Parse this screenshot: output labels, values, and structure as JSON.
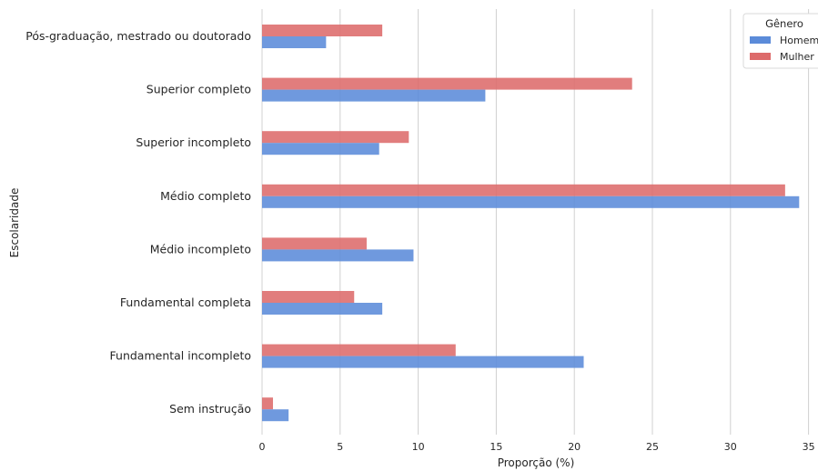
{
  "chart_data": {
    "type": "bar",
    "orientation": "horizontal",
    "title": "",
    "xlabel": "Proporção (%)",
    "ylabel": "Escolaridade",
    "xlim": [
      0,
      35
    ],
    "xticks": [
      0,
      5,
      10,
      15,
      20,
      25,
      30,
      35
    ],
    "grid": "vertical",
    "categories": [
      "Pós-graduação, mestrado ou doutorado",
      "Superior completo",
      "Superior incompleto",
      "Médio completo",
      "Médio incompleto",
      "Fundamental completa",
      "Fundamental incompleto",
      "Sem instrução"
    ],
    "series": [
      {
        "name": "Homem",
        "color": "#5b8bd9",
        "values": [
          4.1,
          14.3,
          7.5,
          34.4,
          9.7,
          7.7,
          20.6,
          1.7
        ]
      },
      {
        "name": "Mulher",
        "color": "#dd6b6b",
        "values": [
          7.7,
          23.7,
          9.4,
          33.5,
          6.7,
          5.9,
          12.4,
          0.7
        ]
      }
    ],
    "legend": {
      "title": "Gênero",
      "placement": "top-right"
    }
  }
}
